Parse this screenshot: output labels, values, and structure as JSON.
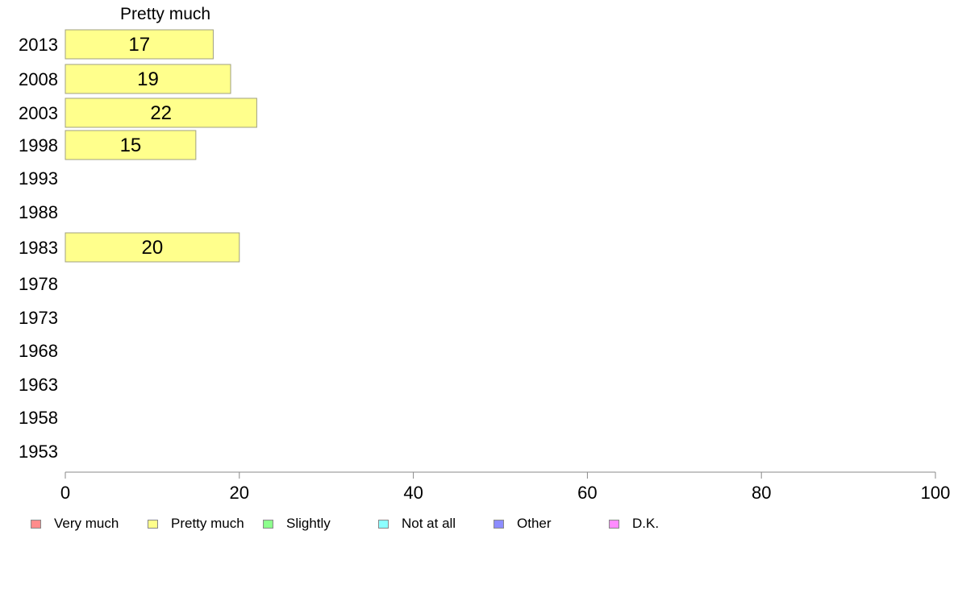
{
  "chart_data": {
    "type": "bar",
    "orientation": "horizontal",
    "stacked": true,
    "categories": [
      "2013",
      "2008",
      "2003",
      "1998",
      "1993",
      "1988",
      "1983",
      "1978",
      "1973",
      "1968",
      "1963",
      "1958",
      "1953"
    ],
    "series": [
      {
        "name": "Very much",
        "color": "#ff8c8c",
        "values": [
          null,
          null,
          null,
          null,
          null,
          null,
          null,
          null,
          null,
          null,
          null,
          null,
          null
        ]
      },
      {
        "name": "Pretty much",
        "color": "#ffff8c",
        "values": [
          17,
          19,
          22,
          15,
          null,
          null,
          20,
          null,
          null,
          null,
          null,
          null,
          null
        ]
      },
      {
        "name": "Slightly",
        "color": "#8cff8c",
        "values": [
          null,
          null,
          null,
          null,
          null,
          null,
          null,
          null,
          null,
          null,
          null,
          null,
          null
        ]
      },
      {
        "name": "Not at all",
        "color": "#8cffff",
        "values": [
          null,
          null,
          null,
          null,
          null,
          null,
          null,
          null,
          null,
          null,
          null,
          null,
          null
        ]
      },
      {
        "name": "Other",
        "color": "#8c8cff",
        "values": [
          null,
          null,
          null,
          null,
          null,
          null,
          null,
          null,
          null,
          null,
          null,
          null,
          null
        ]
      },
      {
        "name": "D.K.",
        "color": "#ff8cff",
        "values": [
          null,
          null,
          null,
          null,
          null,
          null,
          null,
          null,
          null,
          null,
          null,
          null,
          null
        ]
      }
    ],
    "series_header": "Pretty much",
    "xlim": [
      0,
      100
    ],
    "xticks": [
      "0",
      "20",
      "40",
      "60",
      "80",
      "100"
    ],
    "grid": false,
    "legend_position": "bottom"
  }
}
